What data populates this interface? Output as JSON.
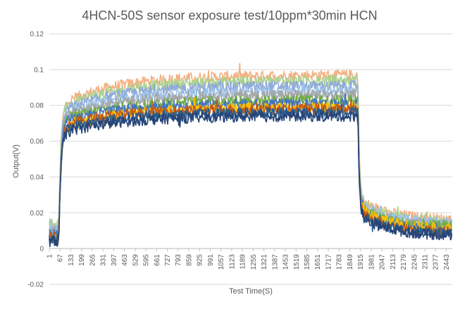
{
  "chart_data": {
    "type": "line",
    "title": "4HCN-50S sensor exposure test/10ppm*30min HCN",
    "xlabel": "Test Time(S)",
    "ylabel": "Output(V)",
    "ylim": [
      -0.02,
      0.12
    ],
    "yticks": [
      "-0.02",
      "0",
      "0.02",
      "0.04",
      "0.06",
      "0.08",
      "0.1",
      "0.12"
    ],
    "y_tick_values": [
      -0.02,
      0,
      0.02,
      0.04,
      0.06,
      0.08,
      0.1,
      0.12
    ],
    "xlim": [
      1,
      2480
    ],
    "xticks": [
      "1",
      "67",
      "133",
      "199",
      "265",
      "331",
      "397",
      "463",
      "529",
      "595",
      "661",
      "727",
      "793",
      "859",
      "925",
      "991",
      "1057",
      "1123",
      "1189",
      "1255",
      "1321",
      "1387",
      "1453",
      "1519",
      "1585",
      "1651",
      "1717",
      "1783",
      "1849",
      "1915",
      "1981",
      "2047",
      "2113",
      "2179",
      "2245",
      "2311",
      "2377",
      "2443"
    ],
    "grid": "horizontal",
    "legend": "none",
    "exposure_on_s": 60,
    "exposure_off_s": 1900,
    "series": [
      {
        "color": "#F4B183",
        "baseline": 0.012,
        "plateau_start": 0.08,
        "plateau_end": 0.097,
        "tail_end": 0.016
      },
      {
        "color": "#A9D18E",
        "baseline": 0.014,
        "plateau_start": 0.078,
        "plateau_end": 0.094,
        "tail_end": 0.015
      },
      {
        "color": "#8FAADC",
        "baseline": 0.01,
        "plateau_start": 0.076,
        "plateau_end": 0.091,
        "tail_end": 0.013
      },
      {
        "color": "#9DC3E6",
        "baseline": 0.011,
        "plateau_start": 0.074,
        "plateau_end": 0.088,
        "tail_end": 0.014
      },
      {
        "color": "#A5A5A5",
        "baseline": 0.01,
        "plateau_start": 0.073,
        "plateau_end": 0.086,
        "tail_end": 0.012
      },
      {
        "color": "#70AD47",
        "baseline": 0.009,
        "plateau_start": 0.071,
        "plateau_end": 0.083,
        "tail_end": 0.012
      },
      {
        "color": "#4472C4",
        "baseline": 0.008,
        "plateau_start": 0.07,
        "plateau_end": 0.081,
        "tail_end": 0.01
      },
      {
        "color": "#FFC000",
        "baseline": 0.006,
        "plateau_start": 0.066,
        "plateau_end": 0.079,
        "tail_end": 0.011
      },
      {
        "color": "#C55A11",
        "baseline": 0.007,
        "plateau_start": 0.068,
        "plateau_end": 0.078,
        "tail_end": 0.009
      },
      {
        "color": "#255E91",
        "baseline": 0.005,
        "plateau_start": 0.066,
        "plateau_end": 0.076,
        "tail_end": 0.008
      },
      {
        "color": "#264478",
        "baseline": 0.004,
        "plateau_start": 0.064,
        "plateau_end": 0.074,
        "tail_end": 0.007
      }
    ]
  }
}
